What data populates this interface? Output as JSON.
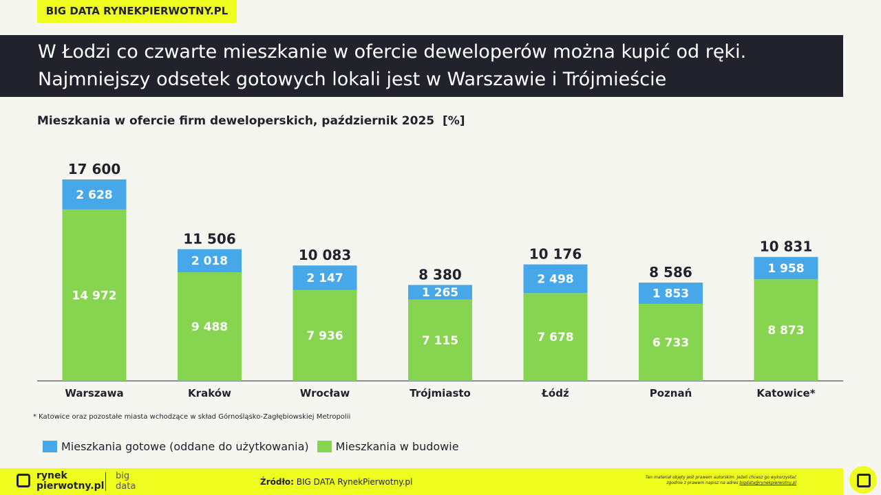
{
  "header": {
    "tag": "BIG DATA RYNEKPIERWOTNY.PL",
    "title": "W Łodzi co czwarte mieszkanie w ofercie deweloperów można kupić od ręki. Najmniejszy odsetek gotowych lokali jest w Warszawie i Trójmieście"
  },
  "chart_data": {
    "type": "stacked-bar",
    "subtitle": "Mieszkania w ofercie firm deweloperskich, październik 2025  [%]",
    "categories": [
      "Warszawa",
      "Kraków",
      "Wrocław",
      "Trójmiasto",
      "Łódź",
      "Poznań",
      "Katowice*"
    ],
    "series": [
      {
        "name": "Mieszkania gotowe (oddane do użytkowania)",
        "color": "#46a8e8",
        "values": [
          2628,
          2018,
          2147,
          1265,
          2498,
          1853,
          1958
        ],
        "value_labels": [
          "2 628",
          "2 018",
          "2 147",
          "1 265",
          "2 498",
          "1 853",
          "1 958"
        ]
      },
      {
        "name": "Mieszkania w budowie",
        "color": "#86d44f",
        "values": [
          14972,
          9488,
          7936,
          7115,
          7678,
          6733,
          8873
        ],
        "value_labels": [
          "14 972",
          "9 488",
          "7 936",
          "7 115",
          "7 678",
          "6 733",
          "8 873"
        ]
      }
    ],
    "totals": [
      17600,
      11506,
      10083,
      8380,
      10176,
      8586,
      10831
    ],
    "total_labels": [
      "17 600",
      "11 506",
      "10 083",
      "8 380",
      "10 176",
      "8 586",
      "10 831"
    ],
    "footnote": "* Katowice oraz pozostałe miasta wchodzące w skład Górnośląsko-Zagłębiowskiej Metropolii"
  },
  "footer": {
    "logo": [
      "rynek",
      "pierwotny.pl"
    ],
    "logo2": [
      "big",
      "data"
    ],
    "source_label": "Źródło:",
    "source": "BIG DATA RynekPierwotny.pl",
    "copyright": [
      "Ten materiał objęty jest prawem autorskim. Jeżeli chcesz go wykorzystać",
      "zgodnie z prawem napisz na adres",
      "bigdata@rynekpierwotny.pl"
    ]
  }
}
